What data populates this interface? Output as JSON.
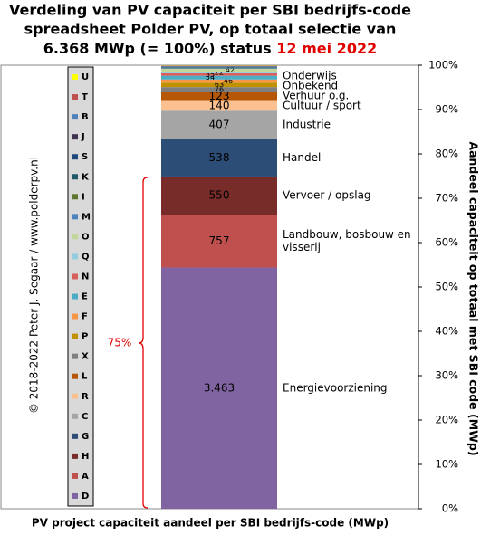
{
  "chart_data": {
    "type": "stacked-bar",
    "title": [
      "Verdeling  van PV capaciteit per SBI bedrijfs-code",
      "spreadsheet Polder PV, op totaal selectie van",
      "6.368 MWp (= 100%) status"
    ],
    "title_date": "12 mei 2022",
    "xlabel": "PV project capaciteit aandeel per SBI bedrijfs-code (MWp)",
    "ylabel": "Aandeel capaciteit op totaal met SBI code (MWp)",
    "credit": "© 2018-2022  Peter J. Segaar / www.polderpv.nl",
    "annotation": "75%",
    "categories": [
      null
    ],
    "ylim": [
      0,
      6368
    ],
    "yticks": [
      {
        "value": 0,
        "label": "0%"
      },
      {
        "value": 636.8,
        "label": "10%"
      },
      {
        "value": 1273.6,
        "label": "20%"
      },
      {
        "value": 1910.4,
        "label": "30%"
      },
      {
        "value": 2547.2,
        "label": "40%"
      },
      {
        "value": 3184,
        "label": "50%"
      },
      {
        "value": 3820.8,
        "label": "60%"
      },
      {
        "value": 4457.6,
        "label": "70%"
      },
      {
        "value": 5094.4,
        "label": "80%"
      },
      {
        "value": 5731.2,
        "label": "90%"
      },
      {
        "value": 6368,
        "label": "100%"
      }
    ],
    "series": [
      {
        "name": "D",
        "color": "#8064a2",
        "values": [
          3463
        ],
        "value_labels": [
          "3.463"
        ],
        "label": "Energievoorziening"
      },
      {
        "name": "A",
        "color": "#c0504d",
        "values": [
          757
        ],
        "value_labels": [
          "757"
        ],
        "label": [
          "Landbouw, bosbouw en",
          "visserij"
        ]
      },
      {
        "name": "H",
        "color": "#772c2a",
        "values": [
          550
        ],
        "value_labels": [
          "550"
        ],
        "label": "Vervoer / opslag"
      },
      {
        "name": "G",
        "color": "#2c4d75",
        "values": [
          538
        ],
        "value_labels": [
          "538"
        ],
        "label": "Handel"
      },
      {
        "name": "C",
        "color": "#a5a5a5",
        "values": [
          407
        ],
        "value_labels": [
          "407"
        ],
        "label": "Industrie"
      },
      {
        "name": "R",
        "color": "#fac090",
        "values": [
          140
        ],
        "value_labels": [
          "140"
        ],
        "label": "Cultuur / sport"
      },
      {
        "name": "L",
        "color": "#b65708",
        "values": [
          123
        ],
        "value_labels": [
          "123"
        ],
        "label": "Verhuur o.g."
      },
      {
        "name": "X",
        "color": "#7f7f7f",
        "values": [
          76
        ],
        "value_labels": [
          "76"
        ],
        "label": "Onbekend"
      },
      {
        "name": "P",
        "color": "#c09100",
        "values": [
          63
        ],
        "value_labels": [
          "63"
        ],
        "label": "Onderwijs"
      },
      {
        "name": "F",
        "color": "#f79646",
        "values": [
          46
        ],
        "value_labels": [
          "46"
        ],
        "label": null
      },
      {
        "name": "E",
        "color": "#4bacc6",
        "values": [
          54
        ],
        "value_labels": [
          "54"
        ],
        "label": null
      },
      {
        "name": "N",
        "color": "#d9605a",
        "values": [
          35
        ],
        "value_labels": [
          "35"
        ],
        "label": null
      },
      {
        "name": "Q",
        "color": "#93cddd",
        "values": [
          22
        ],
        "value_labels": [
          "22"
        ],
        "label": null
      },
      {
        "name": "O",
        "color": "#c3d69b",
        "values": [
          42
        ],
        "value_labels": [
          "42"
        ],
        "label": null
      },
      {
        "name": "M",
        "color": "#4f81bd",
        "values": [
          10
        ],
        "value_labels": [
          null
        ],
        "label": null
      },
      {
        "name": "I",
        "color": "#5f7530",
        "values": [
          5
        ],
        "value_labels": [
          null
        ],
        "label": null
      },
      {
        "name": "K",
        "color": "#215967",
        "values": [
          8
        ],
        "value_labels": [
          null
        ],
        "label": null
      },
      {
        "name": "S",
        "color": "#1f497d",
        "values": [
          6
        ],
        "value_labels": [
          null
        ],
        "label": null
      },
      {
        "name": "J",
        "color": "#403151",
        "values": [
          5
        ],
        "value_labels": [
          null
        ],
        "label": null
      },
      {
        "name": "B",
        "color": "#4f81bd",
        "values": [
          8
        ],
        "value_labels": [
          null
        ],
        "label": null
      },
      {
        "name": "T",
        "color": "#c0504d",
        "values": [
          6
        ],
        "value_labels": [
          null
        ],
        "label": null
      },
      {
        "name": "U",
        "color": "#ffff00",
        "values": [
          4
        ],
        "value_labels": [
          null
        ],
        "label": null
      }
    ]
  }
}
